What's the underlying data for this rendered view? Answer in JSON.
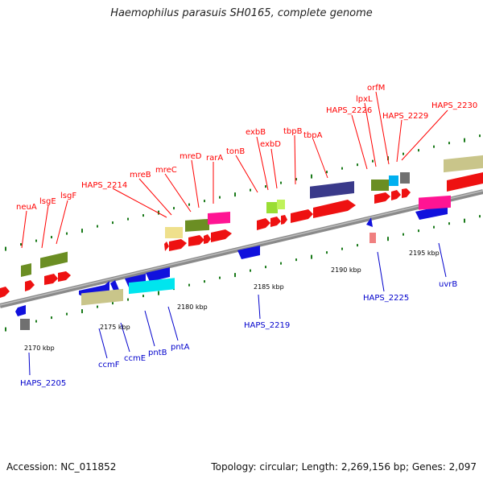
{
  "title": "Haemophilus parasuis SH0165, complete genome",
  "footer": {
    "accession": "Accession: NC_011852",
    "topology": "Topology: circular; Length: 2,269,156 bp; Genes: 2,097"
  },
  "colors": {
    "backbone": "#888888",
    "forward_label": "#ff0000",
    "reverse_label": "#0000cc",
    "tick": "#1a7a1a"
  },
  "scale_ticks": [
    "2170 kbp",
    "2175 kbp",
    "2180 kbp",
    "2185 kbp",
    "2190 kbp",
    "2195 kbp"
  ],
  "top_labels": [
    "neuA",
    "lsgE",
    "lsgF",
    "HAPS_2214",
    "mreB",
    "mreC",
    "mreD",
    "rarA",
    "tonB",
    "exbB",
    "exbD",
    "tbpB",
    "tbpA",
    "HAPS_2226",
    "lpxL",
    "orfM",
    "HAPS_2229",
    "HAPS_2230"
  ],
  "bottom_labels": [
    "HAPS_2205",
    "ccmF",
    "ccmE",
    "pntB",
    "pntA",
    "HAPS_2219",
    "HAPS_2225",
    "uvrB"
  ]
}
